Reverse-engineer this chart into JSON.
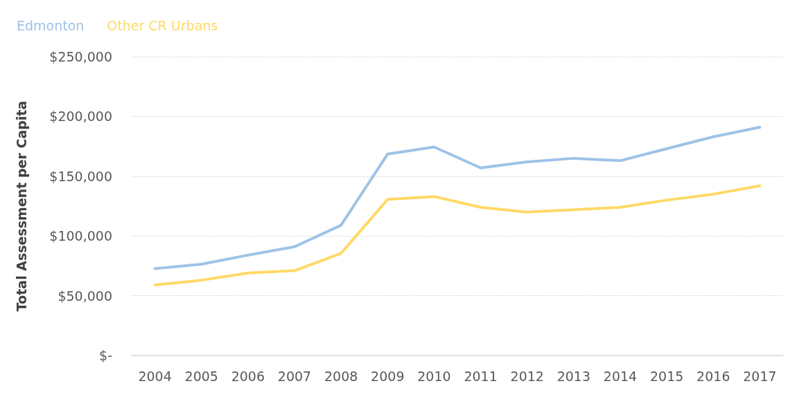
{
  "chart_data": {
    "type": "line",
    "ylabel": "Total Assessment per Capita",
    "categories": [
      "2004",
      "2005",
      "2006",
      "2007",
      "2008",
      "2009",
      "2010",
      "2011",
      "2012",
      "2013",
      "2014",
      "2015",
      "2016",
      "2017"
    ],
    "series": [
      {
        "name": "Edmonton",
        "color": "#9dc3e6",
        "values": [
          72700,
          76400,
          84000,
          91000,
          109000,
          168500,
          174500,
          157000,
          162000,
          165000,
          163000,
          173000,
          183000,
          191000
        ]
      },
      {
        "name": "Other CR Urbans",
        "color": "#ffd966",
        "values": [
          59000,
          63000,
          69000,
          71000,
          85500,
          130600,
          133000,
          124000,
          120000,
          122000,
          124000,
          130000,
          135000,
          142000
        ]
      }
    ],
    "ylim": [
      0,
      250000
    ],
    "yticks": [
      {
        "value": 0,
        "label": "$-"
      },
      {
        "value": 50000,
        "label": "$50,000"
      },
      {
        "value": 100000,
        "label": "$100,000"
      },
      {
        "value": 150000,
        "label": "$150,000"
      },
      {
        "value": 200000,
        "label": "$200,000"
      },
      {
        "value": 250000,
        "label": "$250,000"
      }
    ],
    "grid": "y",
    "legend": "top left",
    "marker": "none",
    "line_style": "solid"
  }
}
